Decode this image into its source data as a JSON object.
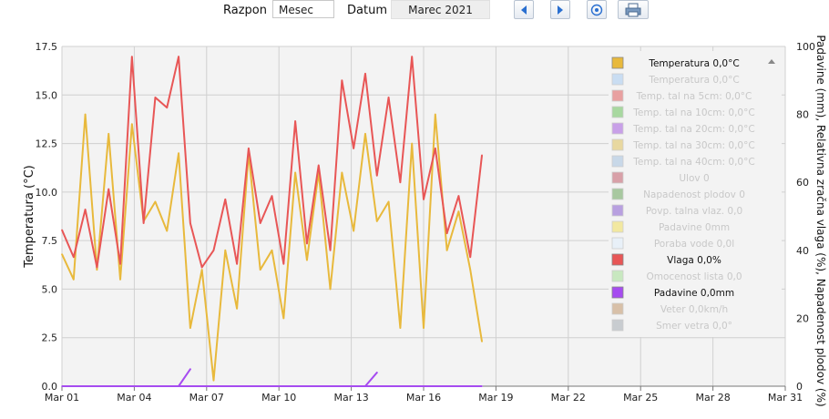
{
  "toolbar": {
    "range_label": "Razpon",
    "range_value": "Mesec",
    "date_label": "Datum",
    "date_value": "Marec 2021",
    "icons": [
      "prev-arrow-icon",
      "next-arrow-icon",
      "reset-circle-icon",
      "print-icon"
    ]
  },
  "colors": {
    "temperature": "#e8b93c",
    "humidity": "#e85656",
    "rainfall": "#a64cf0",
    "plot_bg": "#f3f3f3",
    "grid": "#d0d0d0"
  },
  "chart_data": {
    "type": "line",
    "xlabel": "",
    "ylabel_left": "Temperatura (°C)",
    "ylabel_right": "Padavine (mm), Relativna zračna vlaga (%), Napadenost plodov (%)",
    "x_ticks": [
      "Mar 01",
      "Mar 04",
      "Mar 07",
      "Mar 10",
      "Mar 13",
      "Mar 16",
      "Mar 19",
      "Mar 22",
      "Mar 25",
      "Mar 28",
      "Mar 31"
    ],
    "xlim": [
      "2021-03-01",
      "2021-03-31"
    ],
    "ylim_left": [
      0,
      17.5
    ],
    "y_ticks_left": [
      "0.0",
      "2.5",
      "5.0",
      "7.5",
      "10.0",
      "12.5",
      "15.0",
      "17.5"
    ],
    "ylim_right": [
      0,
      100
    ],
    "y_ticks_right": [
      "0",
      "20",
      "40",
      "60",
      "80",
      "100"
    ],
    "grid": true,
    "legend_position": "right",
    "series": [
      {
        "name": "Temperatura 0,0°C",
        "axis": "left",
        "x": [
          "2021-03-01",
          "2021-03-01",
          "2021-03-02",
          "2021-03-02",
          "2021-03-03",
          "2021-03-03",
          "2021-03-04",
          "2021-03-04",
          "2021-03-05",
          "2021-03-05",
          "2021-03-06",
          "2021-03-06",
          "2021-03-07",
          "2021-03-07",
          "2021-03-08",
          "2021-03-08",
          "2021-03-09",
          "2021-03-09",
          "2021-03-10",
          "2021-03-10",
          "2021-03-11",
          "2021-03-11",
          "2021-03-12",
          "2021-03-12",
          "2021-03-13",
          "2021-03-13",
          "2021-03-14",
          "2021-03-14",
          "2021-03-15",
          "2021-03-15",
          "2021-03-16",
          "2021-03-16",
          "2021-03-17",
          "2021-03-17",
          "2021-03-18",
          "2021-03-18",
          "2021-03-19"
        ],
        "y": [
          6.8,
          5.5,
          14.0,
          6.0,
          13.0,
          5.5,
          13.5,
          8.5,
          9.5,
          8.0,
          12.0,
          3.0,
          6.0,
          0.3,
          7.0,
          4.0,
          12.0,
          6.0,
          7.0,
          3.5,
          11.0,
          6.5,
          11.0,
          5.0,
          11.0,
          8.0,
          13.0,
          8.5,
          9.5,
          3.0,
          12.5,
          3.0,
          14.0,
          7.0,
          9.0,
          6.0,
          2.3
        ]
      },
      {
        "name": "Vlaga 0,0%",
        "axis": "right",
        "x": [
          "2021-03-01",
          "2021-03-01",
          "2021-03-02",
          "2021-03-02",
          "2021-03-03",
          "2021-03-03",
          "2021-03-04",
          "2021-03-04",
          "2021-03-05",
          "2021-03-05",
          "2021-03-06",
          "2021-03-06",
          "2021-03-07",
          "2021-03-07",
          "2021-03-08",
          "2021-03-08",
          "2021-03-09",
          "2021-03-09",
          "2021-03-10",
          "2021-03-10",
          "2021-03-11",
          "2021-03-11",
          "2021-03-12",
          "2021-03-12",
          "2021-03-13",
          "2021-03-13",
          "2021-03-14",
          "2021-03-14",
          "2021-03-15",
          "2021-03-15",
          "2021-03-16",
          "2021-03-16",
          "2021-03-17",
          "2021-03-17",
          "2021-03-18",
          "2021-03-18",
          "2021-03-19"
        ],
        "y": [
          46,
          38,
          52,
          35,
          58,
          36,
          97,
          48,
          85,
          82,
          97,
          48,
          35,
          40,
          55,
          36,
          70,
          48,
          56,
          36,
          78,
          42,
          65,
          40,
          90,
          70,
          92,
          62,
          85,
          60,
          97,
          55,
          70,
          45,
          56,
          38,
          68
        ]
      },
      {
        "name": "Padavine 0,0mm",
        "axis": "right",
        "x": [
          "2021-03-01",
          "2021-03-04",
          "2021-03-06",
          "2021-03-06",
          "2021-03-06",
          "2021-03-08",
          "2021-03-14",
          "2021-03-14",
          "2021-03-14",
          "2021-03-16",
          "2021-03-19"
        ],
        "y": [
          0,
          0,
          0,
          5,
          0,
          0,
          0,
          4,
          0,
          0,
          0
        ]
      }
    ],
    "legend": [
      {
        "label": "Temperatura 0,0°C",
        "color": "#e8b93c",
        "active": true
      },
      {
        "label": "Temperatura 0,0°C",
        "color": "#c9ddf2",
        "active": false
      },
      {
        "label": "Temp. tal na 5cm: 0,0°C",
        "color": "#e8a0a0",
        "active": false
      },
      {
        "label": "Temp. tal na 10cm: 0,0°C",
        "color": "#a8d8a0",
        "active": false
      },
      {
        "label": "Temp. tal na 20cm: 0,0°C",
        "color": "#c8a0e8",
        "active": false
      },
      {
        "label": "Temp. tal na 30cm: 0,0°C",
        "color": "#e8d8a0",
        "active": false
      },
      {
        "label": "Temp. tal na 40cm: 0,0°C",
        "color": "#c8d8e8",
        "active": false
      },
      {
        "label": "Ulov 0",
        "color": "#d8a0a8",
        "active": false
      },
      {
        "label": "Napadenost plodov 0",
        "color": "#a8c8a0",
        "active": false
      },
      {
        "label": "Povp. talna vlaz. 0,0",
        "color": "#b8a0e0",
        "active": false
      },
      {
        "label": "Padavine 0mm",
        "color": "#f2e8a0",
        "active": false
      },
      {
        "label": "Poraba vode 0,0l",
        "color": "#e8f0f8",
        "active": false
      },
      {
        "label": "Vlaga 0,0%",
        "color": "#e85656",
        "active": true
      },
      {
        "label": "Omocenost lista 0,0",
        "color": "#c8e8c0",
        "active": false
      },
      {
        "label": "Padavine 0,0mm",
        "color": "#a64cf0",
        "active": true
      },
      {
        "label": "Veter 0,0km/h",
        "color": "#d8c0a8",
        "active": false
      },
      {
        "label": "Smer vetra 0,0°",
        "color": "#c8ccd0",
        "active": false
      }
    ]
  }
}
